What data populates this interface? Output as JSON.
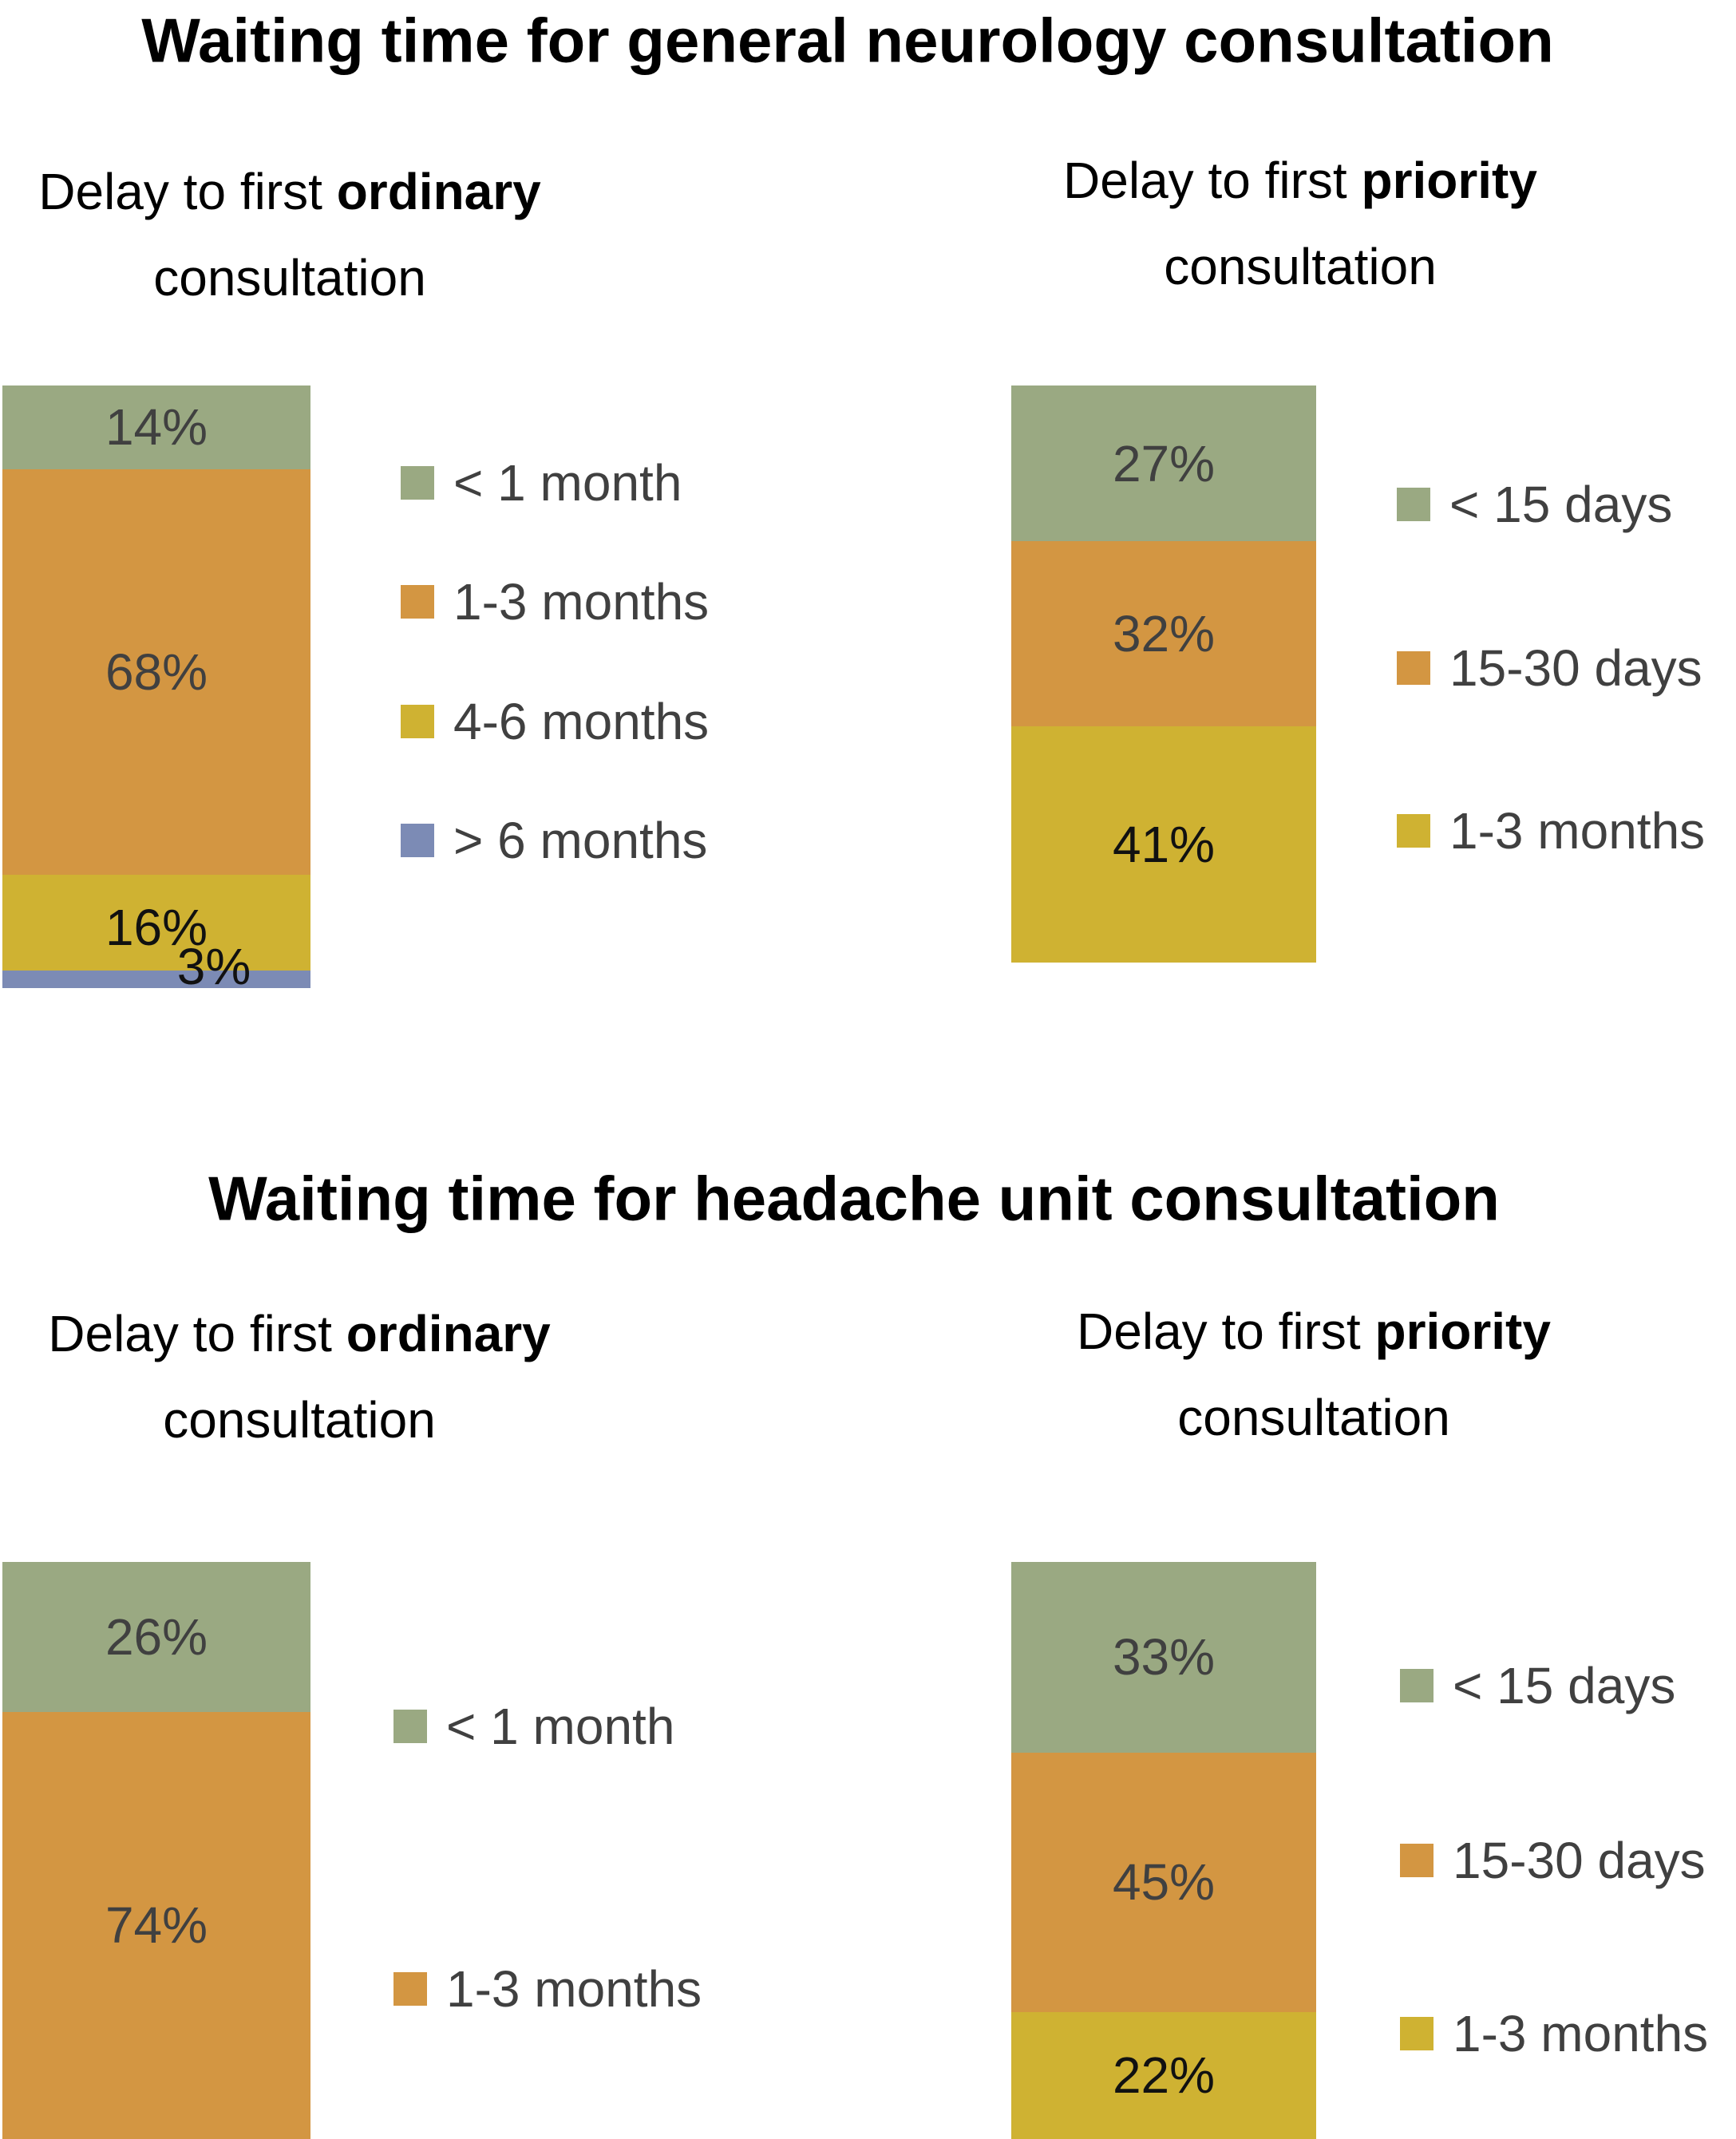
{
  "colors": {
    "green": "#9aa982",
    "orange": "#d39642",
    "yellow": "#cfb232",
    "blue": "#7c8bb5"
  },
  "sections": [
    {
      "title": "Waiting time for general neurology consultation"
    },
    {
      "title": "Waiting time for headache unit consultation"
    }
  ],
  "chart_data": [
    {
      "type": "bar",
      "stacked": true,
      "section": 0,
      "subtitle_pre": "Delay to first ",
      "subtitle_bold": "ordinary",
      "subtitle_post": "consultation",
      "categories": [
        "< 1 month",
        "1-3 months",
        "4-6 months",
        "> 6 months"
      ],
      "values": [
        14,
        68,
        16,
        3
      ],
      "labels": [
        "14%",
        "68%",
        "16%",
        "3%"
      ],
      "colors": [
        "#9aa982",
        "#d39642",
        "#cfb232",
        "#7c8bb5"
      ],
      "legend": "right"
    },
    {
      "type": "bar",
      "stacked": true,
      "section": 0,
      "subtitle_pre": "Delay to first ",
      "subtitle_bold": "priority",
      "subtitle_post": "consultation",
      "categories": [
        "< 15 days",
        "15-30 days",
        "1-3 months"
      ],
      "values": [
        27,
        32,
        41
      ],
      "labels": [
        "27%",
        "32%",
        "41%"
      ],
      "colors": [
        "#9aa982",
        "#d39642",
        "#cfb232"
      ],
      "legend": "right"
    },
    {
      "type": "bar",
      "stacked": true,
      "section": 1,
      "subtitle_pre": "Delay to first ",
      "subtitle_bold": "ordinary",
      "subtitle_post": "consultation",
      "categories": [
        "< 1 month",
        "1-3 months"
      ],
      "values": [
        26,
        74
      ],
      "labels": [
        "26%",
        "74%"
      ],
      "colors": [
        "#9aa982",
        "#d39642"
      ],
      "legend": "right"
    },
    {
      "type": "bar",
      "stacked": true,
      "section": 1,
      "subtitle_pre": "Delay to first ",
      "subtitle_bold": "priority",
      "subtitle_post": "consultation",
      "categories": [
        "< 15 days",
        "15-30 days",
        "1-3 months"
      ],
      "values": [
        33,
        45,
        22
      ],
      "labels": [
        "33%",
        "45%",
        "22%"
      ],
      "colors": [
        "#9aa982",
        "#d39642",
        "#cfb232"
      ],
      "legend": "right"
    }
  ]
}
